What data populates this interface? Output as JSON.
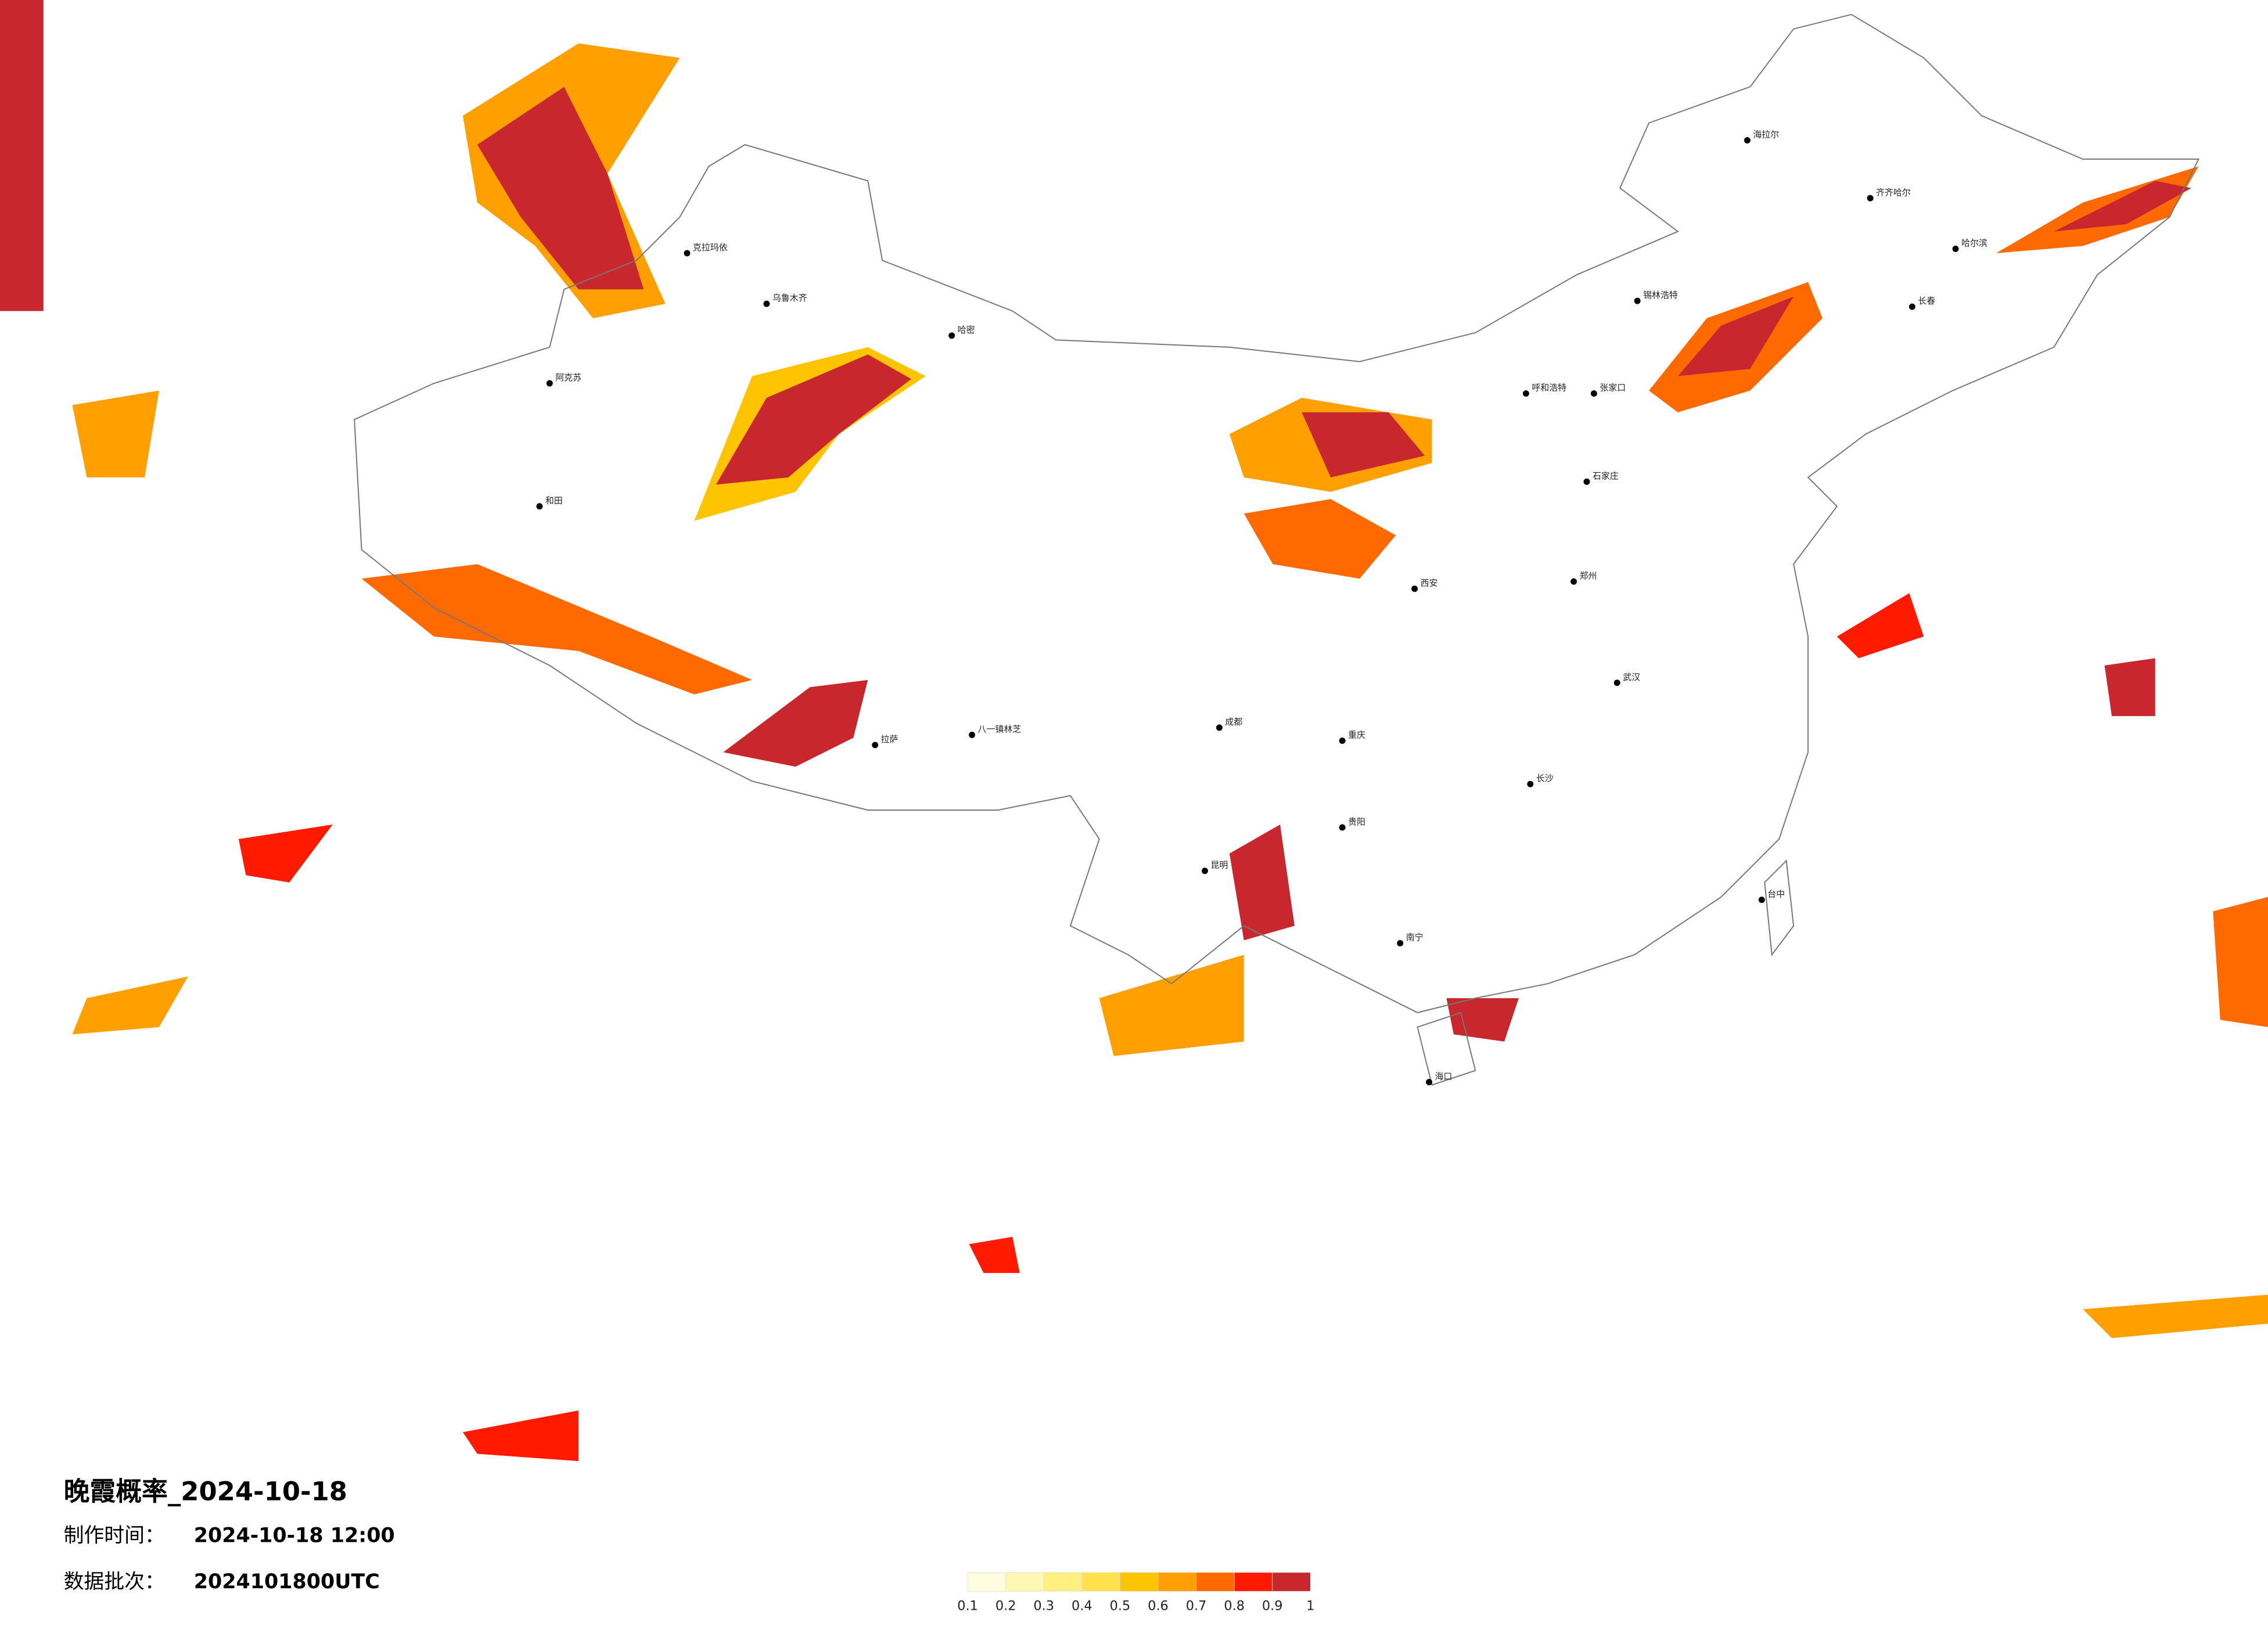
{
  "title": "晚霞概率_2024-10-18",
  "made_label": "制作时间：",
  "made_time": "2024-10-18 12:00",
  "batch_label": "数据批次：",
  "batch": "2024101800UTC",
  "colorbar": {
    "ticks": [
      0.1,
      0.2,
      0.3,
      0.4,
      0.5,
      0.6,
      0.7,
      0.8,
      0.9,
      1
    ],
    "colors": [
      "#fffde0",
      "#fff7b3",
      "#ffef80",
      "#ffe04d",
      "#ffc400",
      "#ff9f00",
      "#ff6a00",
      "#ff1a00",
      "#c8282d"
    ]
  },
  "cities": [
    {
      "name": "克拉玛依"
    },
    {
      "name": "乌鲁木齐"
    },
    {
      "name": "哈密"
    },
    {
      "name": "阿克苏"
    },
    {
      "name": "和田"
    },
    {
      "name": "拉萨"
    },
    {
      "name": "八一镇林芝"
    },
    {
      "name": "呼和浩特"
    },
    {
      "name": "海拉尔"
    },
    {
      "name": "齐齐哈尔"
    },
    {
      "name": "哈尔滨"
    },
    {
      "name": "长春"
    },
    {
      "name": "锡林浩特"
    },
    {
      "name": "张家口"
    },
    {
      "name": "石家庄"
    },
    {
      "name": "郑州"
    },
    {
      "name": "西安"
    },
    {
      "name": "成都"
    },
    {
      "name": "重庆"
    },
    {
      "name": "贵阳"
    },
    {
      "name": "昆明"
    },
    {
      "name": "南宁"
    },
    {
      "name": "长沙"
    },
    {
      "name": "武汉"
    },
    {
      "name": "台中"
    },
    {
      "name": "海口"
    }
  ]
}
